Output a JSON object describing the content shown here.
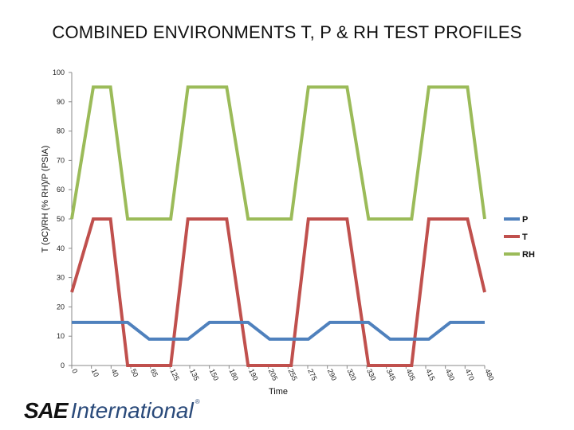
{
  "chart_data": {
    "type": "line",
    "title": "COMBINED ENVIRONMENTS T, P & RH TEST PROFILES",
    "xlabel": "Time",
    "ylabel": "T (oC)/RH (% RH)/P (PSIA)",
    "ylim": [
      0,
      100
    ],
    "yticks": [
      0,
      10,
      20,
      30,
      40,
      50,
      60,
      70,
      80,
      90,
      100
    ],
    "xlim": [
      0,
      480
    ],
    "x_tick_labels": [
      "0",
      "10",
      "40",
      "50",
      "65",
      "125",
      "135",
      "150",
      "180",
      "190",
      "205",
      "255",
      "275",
      "290",
      "320",
      "330",
      "345",
      "405",
      "415",
      "430",
      "470",
      "480"
    ],
    "grid": false,
    "legend": "right",
    "series": [
      {
        "name": "P",
        "color": "#4f81bd",
        "points": [
          [
            0,
            14.7
          ],
          [
            65,
            14.7
          ],
          [
            90,
            9
          ],
          [
            135,
            9
          ],
          [
            160,
            14.7
          ],
          [
            205,
            14.7
          ],
          [
            230,
            9
          ],
          [
            275,
            9
          ],
          [
            300,
            14.7
          ],
          [
            345,
            14.7
          ],
          [
            370,
            9
          ],
          [
            415,
            9
          ],
          [
            440,
            14.7
          ],
          [
            480,
            14.7
          ]
        ]
      },
      {
        "name": "T",
        "color": "#c0504d",
        "points": [
          [
            0,
            25
          ],
          [
            25,
            50
          ],
          [
            45,
            50
          ],
          [
            65,
            0
          ],
          [
            115,
            0
          ],
          [
            135,
            50
          ],
          [
            180,
            50
          ],
          [
            205,
            0
          ],
          [
            255,
            0
          ],
          [
            275,
            50
          ],
          [
            320,
            50
          ],
          [
            345,
            0
          ],
          [
            395,
            0
          ],
          [
            415,
            50
          ],
          [
            460,
            50
          ],
          [
            480,
            25
          ]
        ]
      },
      {
        "name": "RH",
        "color": "#9bbb59",
        "points": [
          [
            0,
            50
          ],
          [
            25,
            95
          ],
          [
            45,
            95
          ],
          [
            65,
            50
          ],
          [
            115,
            50
          ],
          [
            135,
            95
          ],
          [
            180,
            95
          ],
          [
            205,
            50
          ],
          [
            255,
            50
          ],
          [
            275,
            95
          ],
          [
            320,
            95
          ],
          [
            345,
            50
          ],
          [
            395,
            50
          ],
          [
            415,
            95
          ],
          [
            460,
            95
          ],
          [
            480,
            50
          ]
        ]
      }
    ]
  },
  "logo": {
    "name": "SAE",
    "suffix": "International",
    "mark": "®"
  }
}
